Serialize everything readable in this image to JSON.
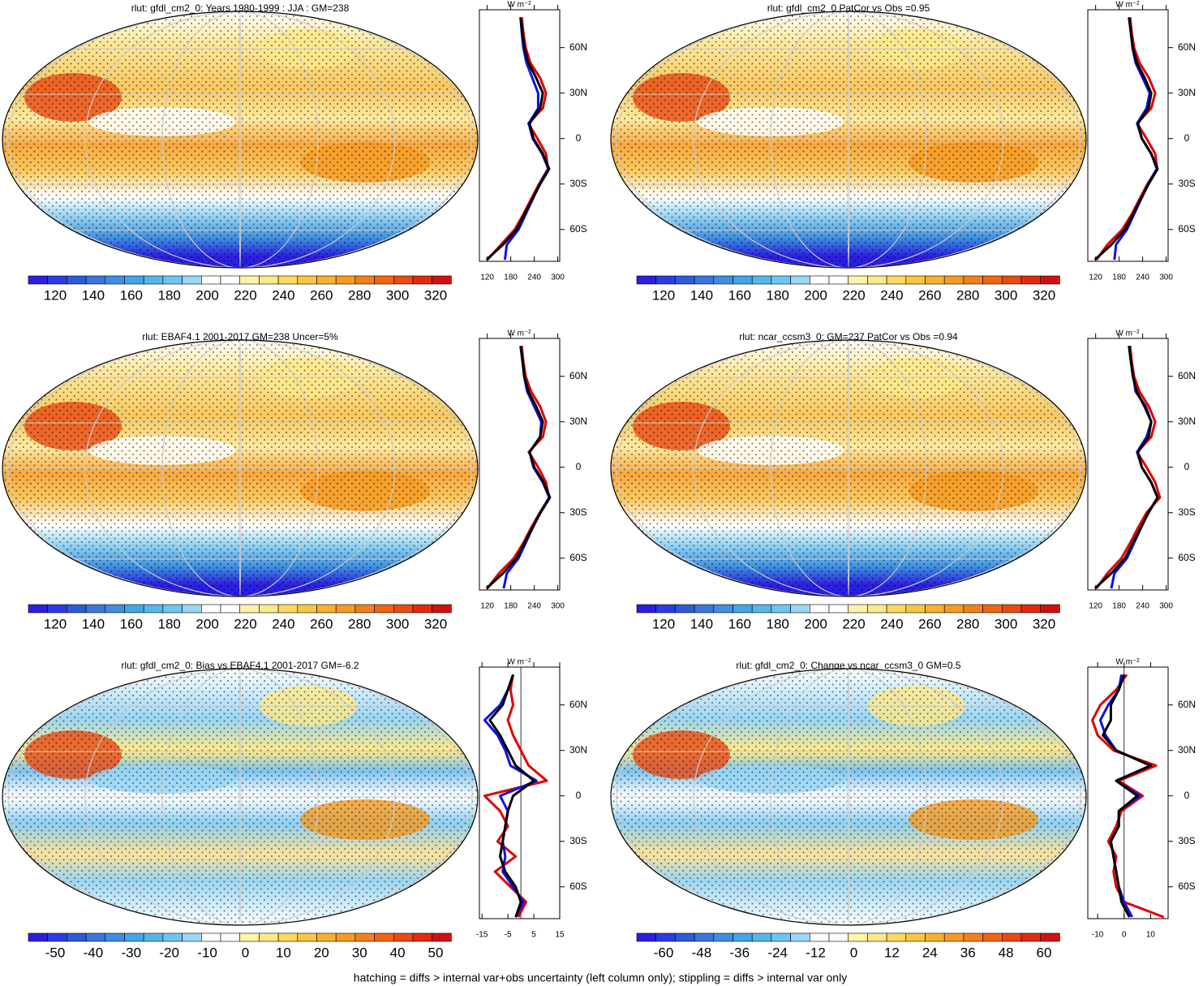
{
  "panels": [
    {
      "title": "rlut: gfdl_cm2_0: Years 1980-1999 : JJA : GM=238",
      "colorbar": {
        "ticks": [
          120,
          140,
          160,
          180,
          200,
          220,
          240,
          260,
          280,
          300,
          320
        ]
      },
      "profile": {
        "unit": "W m⁻²",
        "xlim": [
          100,
          305
        ],
        "xticks": [
          120,
          180,
          240,
          300
        ],
        "ylim": [
          -81,
          85
        ],
        "yticks": [
          {
            "value": 60,
            "label": "60N"
          },
          {
            "value": 30,
            "label": "30N"
          },
          0,
          {
            "value": -30,
            "label": "30S"
          },
          {
            "value": -60,
            "label": "60S"
          }
        ],
        "lat": [
          -80,
          -70,
          -60,
          -50,
          -40,
          -30,
          -20,
          -10,
          0,
          10,
          20,
          30,
          40,
          50,
          60,
          70,
          80
        ],
        "series": [
          {
            "color": "#e00000",
            "values": [
              120,
              155,
              190,
              212,
              232,
              252,
              275,
              270,
              248,
              225,
              262,
              270,
              255,
              230,
              218,
              212,
              208
            ]
          },
          {
            "color": "#1010e0",
            "values": [
              165,
              170,
              200,
              218,
              236,
              254,
              276,
              260,
              236,
              226,
              250,
              250,
              235,
              220,
              212,
              208,
              205
            ]
          },
          {
            "color": "#000000",
            "values": [
              118,
              160,
              195,
              215,
              235,
              255,
              278,
              262,
              238,
              228,
              255,
              262,
              245,
              225,
              215,
              210,
              205
            ]
          }
        ]
      }
    },
    {
      "title": "rlut: gfdl_cm2_0 PatCor vs Obs =0.95",
      "colorbar": {
        "ticks": [
          120,
          140,
          160,
          180,
          200,
          220,
          240,
          260,
          280,
          300,
          320
        ]
      },
      "profile": {
        "unit": "W m⁻²",
        "xlim": [
          100,
          305
        ],
        "xticks": [
          120,
          180,
          240,
          300
        ],
        "ylim": [
          -81,
          85
        ],
        "yticks": [
          {
            "value": 60,
            "label": "60N"
          },
          {
            "value": 30,
            "label": "30N"
          },
          0,
          {
            "value": -30,
            "label": "30S"
          },
          {
            "value": -60,
            "label": "60S"
          }
        ],
        "lat": [
          -80,
          -70,
          -60,
          -50,
          -40,
          -30,
          -20,
          -10,
          0,
          10,
          20,
          30,
          40,
          50,
          60,
          70,
          80
        ],
        "series": [
          {
            "color": "#e00000",
            "values": [
              122,
              150,
              188,
              212,
              232,
              252,
              277,
              272,
              250,
              226,
              262,
              272,
              256,
              232,
              218,
              212,
              208
            ]
          },
          {
            "color": "#1010e0",
            "values": [
              168,
              172,
              200,
              218,
              236,
              254,
              276,
              262,
              238,
              226,
              250,
              258,
              240,
              222,
              214,
              210,
              206
            ]
          },
          {
            "color": "#000000",
            "values": [
              118,
              160,
              195,
              215,
              235,
              255,
              278,
              262,
              238,
              228,
              255,
              262,
              245,
              225,
              215,
              210,
              205
            ]
          }
        ]
      }
    },
    {
      "title": "rlut: EBAF4.1 2001-2017 GM=238 Uncer=5%",
      "colorbar": {
        "ticks": [
          120,
          140,
          160,
          180,
          200,
          220,
          240,
          260,
          280,
          300,
          320
        ]
      },
      "profile": {
        "unit": "W m⁻²",
        "xlim": [
          100,
          305
        ],
        "xticks": [
          120,
          180,
          240,
          300
        ],
        "ylim": [
          -81,
          85
        ],
        "yticks": [
          {
            "value": 60,
            "label": "60N"
          },
          {
            "value": 30,
            "label": "30N"
          },
          0,
          {
            "value": -30,
            "label": "30S"
          },
          {
            "value": -60,
            "label": "60S"
          }
        ],
        "lat": [
          -80,
          -70,
          -60,
          -50,
          -40,
          -30,
          -20,
          -10,
          0,
          10,
          20,
          30,
          40,
          50,
          60,
          70,
          80
        ],
        "series": [
          {
            "color": "#e00000",
            "values": [
              120,
              150,
              188,
              212,
              232,
              254,
              278,
              270,
              250,
              226,
              262,
              270,
              255,
              232,
              218,
              212,
              208
            ]
          },
          {
            "color": "#1010e0",
            "values": [
              162,
              170,
              200,
              218,
              236,
              255,
              278,
              262,
              238,
              228,
              255,
              258,
              240,
              222,
              214,
              210,
              206
            ]
          },
          {
            "color": "#000000",
            "values": [
              118,
              160,
              195,
              215,
              235,
              256,
              280,
              264,
              240,
              228,
              255,
              262,
              245,
              225,
              215,
              210,
              205
            ]
          }
        ]
      }
    },
    {
      "title": "rlut: ncar_ccsm3_0: GM=237 PatCor vs Obs =0.94",
      "colorbar": {
        "ticks": [
          120,
          140,
          160,
          180,
          200,
          220,
          240,
          260,
          280,
          300,
          320
        ]
      },
      "profile": {
        "unit": "W m⁻²",
        "xlim": [
          100,
          305
        ],
        "xticks": [
          120,
          180,
          240,
          300
        ],
        "ylim": [
          -81,
          85
        ],
        "yticks": [
          {
            "value": 60,
            "label": "60N"
          },
          {
            "value": 30,
            "label": "30N"
          },
          0,
          {
            "value": -30,
            "label": "30S"
          },
          {
            "value": -60,
            "label": "60S"
          }
        ],
        "lat": [
          -80,
          -70,
          -60,
          -50,
          -40,
          -30,
          -20,
          -10,
          0,
          10,
          20,
          30,
          40,
          50,
          60,
          70,
          80
        ],
        "series": [
          {
            "color": "#e00000",
            "values": [
              122,
              150,
              186,
              208,
              228,
              250,
              284,
              272,
              250,
              226,
              262,
              272,
              256,
              232,
              218,
              212,
              208
            ]
          },
          {
            "color": "#1010e0",
            "values": [
              160,
              168,
              200,
              218,
              236,
              254,
              278,
              262,
              238,
              226,
              250,
              262,
              248,
              222,
              216,
              210,
              206
            ]
          },
          {
            "color": "#000000",
            "values": [
              118,
              160,
              195,
              215,
              235,
              255,
              278,
              262,
              238,
              228,
              255,
              262,
              245,
              225,
              215,
              210,
              205
            ]
          }
        ]
      }
    },
    {
      "title": "rlut: gfdl_cm2_0: Bias vs EBAF4.1 2001-2017 GM=-6.2",
      "colorbar": {
        "ticks": [
          -50,
          -40,
          -30,
          -20,
          -10,
          0,
          10,
          20,
          30,
          40,
          50
        ]
      },
      "profile": {
        "unit": "W m⁻²",
        "xlim": [
          -16,
          15
        ],
        "xticks": [
          -15,
          -5,
          5,
          15
        ],
        "ylim": [
          -81,
          85
        ],
        "yticks": [
          {
            "value": 60,
            "label": "60N"
          },
          {
            "value": 30,
            "label": "30N"
          },
          0,
          {
            "value": -30,
            "label": "30S"
          },
          {
            "value": -60,
            "label": "60S"
          }
        ],
        "lat": [
          -80,
          -70,
          -60,
          -50,
          -40,
          -30,
          -20,
          -10,
          0,
          10,
          20,
          30,
          40,
          50,
          60,
          70,
          80
        ],
        "series": [
          {
            "color": "#e00000",
            "values": [
              -1,
              2,
              -4,
              -10,
              -2,
              -9,
              -5,
              -8,
              -14,
              10,
              3,
              0,
              -3,
              -5,
              -3,
              -4,
              -3
            ]
          },
          {
            "color": "#1010e0",
            "values": [
              -2,
              1,
              -3,
              -7,
              -6,
              -7,
              -6,
              -5,
              -8,
              6,
              -4,
              -6,
              -9,
              -14,
              -8,
              -5,
              -3
            ]
          },
          {
            "color": "#000000",
            "values": [
              -2,
              0,
              -2,
              -6,
              -8,
              -7,
              -6,
              -5,
              -3,
              5,
              -2,
              -5,
              -8,
              -12,
              -7,
              -5,
              -3
            ]
          }
        ]
      }
    },
    {
      "title": "rlut: gfdl_cm2_0: Change vs ncar_ccsm3_0 GM=0.5",
      "colorbar": {
        "ticks": [
          -60,
          -48,
          -36,
          -24,
          -12,
          0,
          12,
          24,
          36,
          48,
          60
        ]
      },
      "profile": {
        "unit": "W m⁻²",
        "xlim": [
          -13.7,
          16.6
        ],
        "xticks": [
          -10,
          0,
          10
        ],
        "ylim": [
          -81,
          85
        ],
        "yticks": [
          {
            "value": 60,
            "label": "60N"
          },
          {
            "value": 30,
            "label": "30N"
          },
          0,
          {
            "value": -30,
            "label": "30S"
          },
          {
            "value": -60,
            "label": "60S"
          }
        ],
        "lat": [
          -80,
          -70,
          -60,
          -50,
          -40,
          -30,
          -20,
          -10,
          0,
          10,
          20,
          30,
          40,
          50,
          60,
          70,
          80
        ],
        "series": [
          {
            "color": "#e00000",
            "values": [
              15,
              0,
              -3,
              -4,
              -3,
              -6,
              -3,
              -1,
              7,
              -2,
              12,
              -4,
              -10,
              -12,
              -9,
              -3,
              1
            ]
          },
          {
            "color": "#1010e0",
            "values": [
              3,
              0,
              -2,
              -3,
              -4,
              -5,
              -2,
              -2,
              6,
              -3,
              10,
              -3,
              -7,
              -9,
              -6,
              -2,
              -1
            ]
          },
          {
            "color": "#000000",
            "values": [
              2,
              -1,
              -2,
              -3,
              -4,
              -5,
              -2,
              -2,
              5,
              -3,
              10,
              -3,
              -8,
              -5,
              -5,
              -2,
              0
            ]
          }
        ]
      }
    }
  ],
  "colorbar_colors": [
    "#2a1fe0",
    "#2c3be6",
    "#2d5ad8",
    "#3a76dc",
    "#3f8fe0",
    "#45a4e4",
    "#55b6ec",
    "#6ec6f0",
    "#9ad6f4",
    "#ffffff",
    "#ffffff",
    "#fff3a8",
    "#fde98a",
    "#fbd860",
    "#f9c640",
    "#f7b030",
    "#f59a22",
    "#f38018",
    "#f06612",
    "#eb4a10",
    "#e32a10",
    "#d11010"
  ],
  "footer": "hatching = diffs > internal var+obs uncertainty (left column only); stippling = diffs > internal var only"
}
